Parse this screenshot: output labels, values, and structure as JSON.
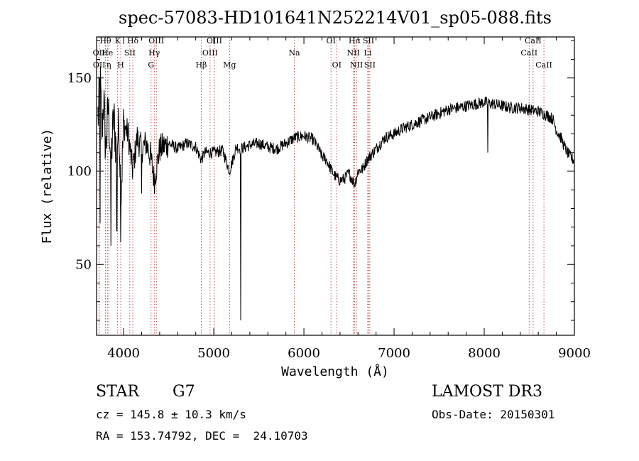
{
  "chart_data": {
    "type": "line",
    "title": "spec-57083-HD101641N252214V01_sp05-088.fits",
    "xlabel": "Wavelength (Å)",
    "ylabel": "Flux (relative)",
    "xlim": [
      3700,
      9000
    ],
    "ylim": [
      12,
      172
    ],
    "x_ticks": [
      4000,
      5000,
      6000,
      7000,
      8000,
      9000
    ],
    "y_ticks": [
      50,
      100,
      150
    ],
    "grid": false,
    "line_color": "#000000",
    "marker_color": "#b22222",
    "spectrum_anchors": [
      [
        3720,
        130
      ],
      [
        3740,
        150
      ],
      [
        3760,
        120
      ],
      [
        3780,
        140
      ],
      [
        3800,
        110
      ],
      [
        3830,
        135
      ],
      [
        3860,
        105
      ],
      [
        3890,
        130
      ],
      [
        3920,
        110
      ],
      [
        3950,
        125
      ],
      [
        3970,
        85
      ],
      [
        4000,
        125
      ],
      [
        4050,
        120
      ],
      [
        4101,
        100
      ],
      [
        4150,
        118
      ],
      [
        4200,
        112
      ],
      [
        4250,
        115
      ],
      [
        4300,
        108
      ],
      [
        4340,
        95
      ],
      [
        4400,
        112
      ],
      [
        4500,
        115
      ],
      [
        4600,
        112
      ],
      [
        4700,
        115
      ],
      [
        4800,
        113
      ],
      [
        4861,
        106
      ],
      [
        4900,
        110
      ],
      [
        5000,
        110
      ],
      [
        5100,
        111
      ],
      [
        5175,
        100
      ],
      [
        5250,
        113
      ],
      [
        5300,
        112
      ],
      [
        5400,
        114
      ],
      [
        5500,
        115
      ],
      [
        5600,
        113
      ],
      [
        5700,
        112
      ],
      [
        5800,
        115
      ],
      [
        5900,
        118
      ],
      [
        6000,
        119
      ],
      [
        6100,
        117
      ],
      [
        6150,
        113
      ],
      [
        6200,
        108
      ],
      [
        6250,
        106
      ],
      [
        6300,
        101
      ],
      [
        6350,
        97
      ],
      [
        6400,
        95
      ],
      [
        6450,
        96
      ],
      [
        6500,
        99
      ],
      [
        6563,
        93
      ],
      [
        6600,
        100
      ],
      [
        6650,
        101
      ],
      [
        6700,
        106
      ],
      [
        6800,
        112
      ],
      [
        6900,
        118
      ],
      [
        7000,
        120
      ],
      [
        7100,
        123
      ],
      [
        7200,
        125
      ],
      [
        7300,
        127
      ],
      [
        7400,
        129
      ],
      [
        7500,
        131
      ],
      [
        7600,
        133
      ],
      [
        7700,
        134
      ],
      [
        7800,
        135
      ],
      [
        7900,
        136
      ],
      [
        8000,
        137
      ],
      [
        8100,
        136
      ],
      [
        8200,
        135
      ],
      [
        8300,
        134
      ],
      [
        8400,
        134
      ],
      [
        8500,
        133
      ],
      [
        8600,
        132
      ],
      [
        8700,
        130
      ],
      [
        8760,
        128
      ],
      [
        8800,
        122
      ],
      [
        8850,
        118
      ],
      [
        8900,
        112
      ],
      [
        8950,
        108
      ],
      [
        8990,
        106
      ]
    ],
    "dips": [
      [
        5300,
        20
      ],
      [
        3740,
        72
      ],
      [
        3860,
        60
      ],
      [
        3925,
        68
      ],
      [
        3968,
        62
      ],
      [
        4200,
        88
      ],
      [
        8040,
        110
      ],
      [
        8998,
        86
      ]
    ],
    "lines": [
      {
        "label": "Hθ",
        "x": 3798,
        "row": 0
      },
      {
        "label": "OII",
        "x": 3727,
        "row": 1
      },
      {
        "label": "OII",
        "x": 3729,
        "row": 2
      },
      {
        "label": "He",
        "x": 3820,
        "row": 1
      },
      {
        "label": "η",
        "x": 3835,
        "row": 2
      },
      {
        "label": "K",
        "x": 3934,
        "row": 0
      },
      {
        "label": "SII",
        "x": 4069,
        "row": 1
      },
      {
        "label": "H",
        "x": 3968,
        "row": 2
      },
      {
        "label": "Hδ",
        "x": 4102,
        "row": 0
      },
      {
        "label": "OIII",
        "x": 4363,
        "row": 0
      },
      {
        "label": "Hγ",
        "x": 4340,
        "row": 1
      },
      {
        "label": "G",
        "x": 4305,
        "row": 2
      },
      {
        "label": "Hβ",
        "x": 4861,
        "row": 2
      },
      {
        "label": "OIII",
        "x": 5007,
        "row": 0
      },
      {
        "label": "OIII",
        "x": 4959,
        "row": 1
      },
      {
        "label": "Mg",
        "x": 5175,
        "row": 2
      },
      {
        "label": "Na",
        "x": 5893,
        "row": 1
      },
      {
        "label": "OI",
        "x": 6300,
        "row": 0
      },
      {
        "label": "OI",
        "x": 6364,
        "row": 2
      },
      {
        "label": "Hα",
        "x": 6563,
        "row": 0
      },
      {
        "label": "NII",
        "x": 6548,
        "row": 1
      },
      {
        "label": "NII",
        "x": 6583,
        "row": 2
      },
      {
        "label": "SII",
        "x": 6716,
        "row": 0
      },
      {
        "label": "Li",
        "x": 6708,
        "row": 1
      },
      {
        "label": "SII",
        "x": 6731,
        "row": 2
      },
      {
        "label": "CaII",
        "x": 8542,
        "row": 0
      },
      {
        "label": "CaII",
        "x": 8498,
        "row": 1
      },
      {
        "label": "CaII",
        "x": 8662,
        "row": 2
      }
    ]
  },
  "info": {
    "object_class": "STAR",
    "subclass": "G7",
    "survey": "LAMOST DR3",
    "cz": "cz = 145.8 ± 10.3 km/s",
    "obs_date": "Obs-Date: 20150301",
    "coords": "RA = 153.74792, DEC =  24.10703"
  }
}
